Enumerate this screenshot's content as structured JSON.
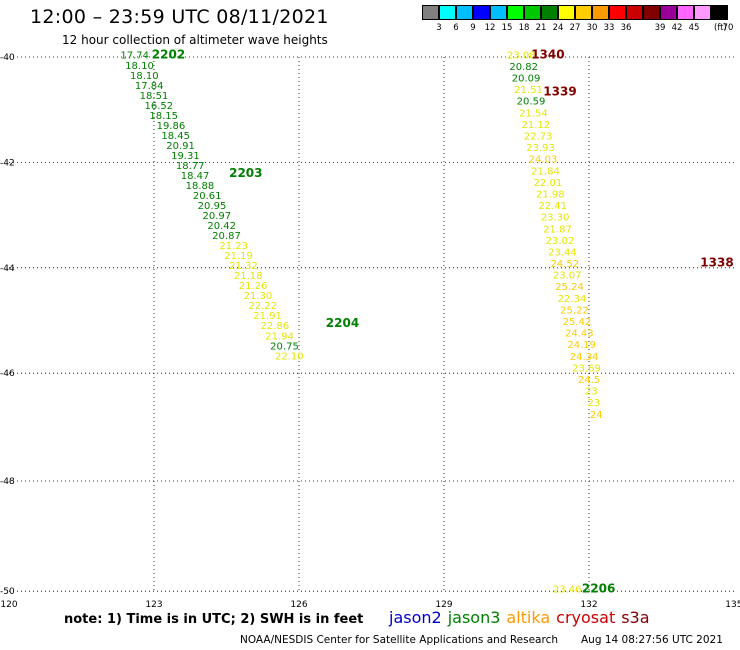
{
  "title": "12:00 – 23:59 UTC 08/11/2021",
  "subtitle": "12 hour collection of altimeter wave heights",
  "color_scale": {
    "unit_label": "(ft)",
    "colors": [
      "#808080",
      "#00ffff",
      "#00bfff",
      "#0000ff",
      "#00bfff",
      "#00ff00",
      "#00c800",
      "#008000",
      "#ffff00",
      "#ffcc00",
      "#ff9900",
      "#ff0000",
      "#cc0000",
      "#800000",
      "#990099",
      "#ff66ff",
      "#ff99ff",
      "#000000"
    ],
    "tick_labels": [
      "3",
      "6",
      "9",
      "12",
      "15",
      "18",
      "21",
      "24",
      "27",
      "30",
      "33",
      "36",
      "39",
      "42",
      "45",
      "70"
    ]
  },
  "axes": {
    "lon_labels": [
      "120",
      "123",
      "126",
      "129",
      "132",
      "135"
    ],
    "lat_labels": [
      "-40",
      "-42",
      "-44",
      "-46",
      "-48",
      "-50"
    ]
  },
  "tracks": [
    {
      "name": "2202",
      "color": "#008000",
      "label": {
        "lon": 123.3,
        "lat": -39.95
      },
      "points": [
        {
          "lon": 122.6,
          "lat": -39.95,
          "value": "17.74",
          "color": "#008000"
        },
        {
          "lon": 122.7,
          "lat": -40.15,
          "value": "18.10",
          "color": "#008000"
        },
        {
          "lon": 122.8,
          "lat": -40.34,
          "value": "18.10",
          "color": "#008000"
        },
        {
          "lon": 122.9,
          "lat": -40.53,
          "value": "17.84",
          "color": "#008000"
        },
        {
          "lon": 123.0,
          "lat": -40.72,
          "value": "18.51",
          "color": "#008000"
        },
        {
          "lon": 123.1,
          "lat": -40.91,
          "value": "16.52",
          "color": "#008000"
        },
        {
          "lon": 123.2,
          "lat": -41.1,
          "value": "18.15",
          "color": "#008000"
        },
        {
          "lon": 123.35,
          "lat": -41.29,
          "value": "19.86",
          "color": "#008000"
        },
        {
          "lon": 123.45,
          "lat": -41.48,
          "value": "18.45",
          "color": "#008000"
        },
        {
          "lon": 123.55,
          "lat": -41.67,
          "value": "20.91",
          "color": "#008000"
        },
        {
          "lon": 123.65,
          "lat": -41.86,
          "value": "19.31",
          "color": "#008000"
        },
        {
          "lon": 123.75,
          "lat": -42.05,
          "value": "18.77",
          "color": "#008000"
        },
        {
          "lon": 123.85,
          "lat": -42.24,
          "value": "18.47",
          "color": "#008000"
        },
        {
          "lon": 123.95,
          "lat": -42.43,
          "value": "18.88",
          "color": "#008000"
        },
        {
          "lon": 124.1,
          "lat": -42.62,
          "value": "20.61",
          "color": "#008000"
        },
        {
          "lon": 124.2,
          "lat": -42.81,
          "value": "20.95",
          "color": "#008000"
        },
        {
          "lon": 124.3,
          "lat": -43.0,
          "value": "20.97",
          "color": "#008000"
        },
        {
          "lon": 124.4,
          "lat": -43.19,
          "value": "20.42",
          "color": "#008000"
        },
        {
          "lon": 124.5,
          "lat": -43.38,
          "value": "20.87",
          "color": "#008000"
        }
      ]
    },
    {
      "name": "2203",
      "color": "#008000",
      "label": {
        "lon": 124.9,
        "lat": -42.2
      },
      "points": [
        {
          "lon": 124.65,
          "lat": -43.57,
          "value": "21.23",
          "color": "#e6e600"
        },
        {
          "lon": 124.75,
          "lat": -43.76,
          "value": "21.19",
          "color": "#e6e600"
        },
        {
          "lon": 124.85,
          "lat": -43.95,
          "value": "21.32",
          "color": "#e6e600"
        },
        {
          "lon": 124.95,
          "lat": -44.14,
          "value": "21.18",
          "color": "#e6e600"
        },
        {
          "lon": 125.05,
          "lat": -44.33,
          "value": "21.26",
          "color": "#e6e600"
        },
        {
          "lon": 125.15,
          "lat": -44.52,
          "value": "21.30",
          "color": "#e6e600"
        },
        {
          "lon": 125.25,
          "lat": -44.71,
          "value": "22.22",
          "color": "#e6e600"
        },
        {
          "lon": 125.35,
          "lat": -44.9,
          "value": "21.91",
          "color": "#e6e600"
        },
        {
          "lon": 125.5,
          "lat": -45.09,
          "value": "22.86",
          "color": "#e6e600"
        },
        {
          "lon": 125.6,
          "lat": -45.28,
          "value": "21.94",
          "color": "#e6e600"
        },
        {
          "lon": 125.7,
          "lat": -45.47,
          "value": "20.75",
          "color": "#008000"
        },
        {
          "lon": 125.8,
          "lat": -45.66,
          "value": "22.10",
          "color": "#e6e600"
        }
      ]
    },
    {
      "name": "2204",
      "color": "#008000",
      "label": {
        "lon": 126.9,
        "lat": -45.05
      },
      "points": []
    },
    {
      "name": "1340",
      "color": "#800000",
      "label": {
        "lon": 131.15,
        "lat": -39.95
      },
      "points": [
        {
          "lon": 130.6,
          "lat": -39.95,
          "value": "23.08",
          "color": "#e6e600"
        },
        {
          "lon": 130.65,
          "lat": -40.17,
          "value": "20.82",
          "color": "#008000"
        },
        {
          "lon": 130.7,
          "lat": -40.39,
          "value": "20.09",
          "color": "#008000"
        },
        {
          "lon": 130.75,
          "lat": -40.61,
          "value": "21.51",
          "color": "#e6e600"
        },
        {
          "lon": 130.8,
          "lat": -40.83,
          "value": "20.59",
          "color": "#008000"
        }
      ]
    },
    {
      "name": "1339",
      "color": "#800000",
      "label": {
        "lon": 131.4,
        "lat": -40.65
      },
      "points": [
        {
          "lon": 130.85,
          "lat": -41.05,
          "value": "21.54",
          "color": "#e6e600"
        },
        {
          "lon": 130.9,
          "lat": -41.27,
          "value": "21.12",
          "color": "#e6e600"
        },
        {
          "lon": 130.95,
          "lat": -41.49,
          "value": "22.73",
          "color": "#e6e600"
        },
        {
          "lon": 131.0,
          "lat": -41.71,
          "value": "23.93",
          "color": "#e6e600"
        },
        {
          "lon": 131.05,
          "lat": -41.93,
          "value": "24.03",
          "color": "#ffcc00"
        },
        {
          "lon": 131.1,
          "lat": -42.15,
          "value": "21.84",
          "color": "#e6e600"
        },
        {
          "lon": 131.15,
          "lat": -42.37,
          "value": "22.01",
          "color": "#e6e600"
        },
        {
          "lon": 131.2,
          "lat": -42.59,
          "value": "21.98",
          "color": "#e6e600"
        },
        {
          "lon": 131.25,
          "lat": -42.81,
          "value": "22.41",
          "color": "#e6e600"
        },
        {
          "lon": 131.3,
          "lat": -43.03,
          "value": "23.30",
          "color": "#e6e600"
        },
        {
          "lon": 131.35,
          "lat": -43.25,
          "value": "21.87",
          "color": "#e6e600"
        },
        {
          "lon": 131.4,
          "lat": -43.47,
          "value": "23.02",
          "color": "#e6e600"
        },
        {
          "lon": 131.45,
          "lat": -43.69,
          "value": "23.44",
          "color": "#e6e600"
        }
      ]
    },
    {
      "name": "1338",
      "color": "#800000",
      "label": {
        "lon": 134.65,
        "lat": -43.9
      },
      "points": [
        {
          "lon": 131.5,
          "lat": -43.91,
          "value": "24.52",
          "color": "#ffcc00"
        },
        {
          "lon": 131.55,
          "lat": -44.13,
          "value": "23.07",
          "color": "#e6e600"
        },
        {
          "lon": 131.6,
          "lat": -44.35,
          "value": "25.24",
          "color": "#ffcc00"
        },
        {
          "lon": 131.65,
          "lat": -44.57,
          "value": "22.34",
          "color": "#e6e600"
        },
        {
          "lon": 131.7,
          "lat": -44.79,
          "value": "25.22",
          "color": "#ffcc00"
        },
        {
          "lon": 131.75,
          "lat": -45.01,
          "value": "25.42",
          "color": "#ffcc00"
        },
        {
          "lon": 131.8,
          "lat": -45.23,
          "value": "24.43",
          "color": "#ffcc00"
        },
        {
          "lon": 131.85,
          "lat": -45.45,
          "value": "24.19",
          "color": "#ffcc00"
        },
        {
          "lon": 131.9,
          "lat": -45.67,
          "value": "24.34",
          "color": "#ffcc00"
        },
        {
          "lon": 131.95,
          "lat": -45.89,
          "value": "23.69",
          "color": "#e6e600"
        },
        {
          "lon": 132.0,
          "lat": -46.11,
          "value": "24.5",
          "color": "#ffcc00"
        },
        {
          "lon": 132.05,
          "lat": -46.33,
          "value": "23",
          "color": "#e6e600"
        },
        {
          "lon": 132.1,
          "lat": -46.55,
          "value": "23",
          "color": "#e6e600"
        },
        {
          "lon": 132.15,
          "lat": -46.77,
          "value": "24",
          "color": "#ffcc00"
        }
      ]
    },
    {
      "name": "2206",
      "color": "#008000",
      "label": {
        "lon": 132.2,
        "lat": -49.95
      },
      "points": [
        {
          "lon": 131.55,
          "lat": -49.95,
          "value": "23.46",
          "color": "#e6e600"
        }
      ]
    }
  ],
  "note": "note: 1) Time is in UTC; 2) SWH is in feet",
  "satellites": [
    {
      "name": "jason2",
      "color": "#0000cc"
    },
    {
      "name": "jason3",
      "color": "#008000"
    },
    {
      "name": "altika",
      "color": "#ff9900"
    },
    {
      "name": "cryosat",
      "color": "#cc0000"
    },
    {
      "name": "s3a",
      "color": "#800000"
    }
  ],
  "credit": "NOAA/NESDIS Center for Satellite Applications and Research",
  "timestamp": "Aug 14 08:27:56 UTC 2021"
}
